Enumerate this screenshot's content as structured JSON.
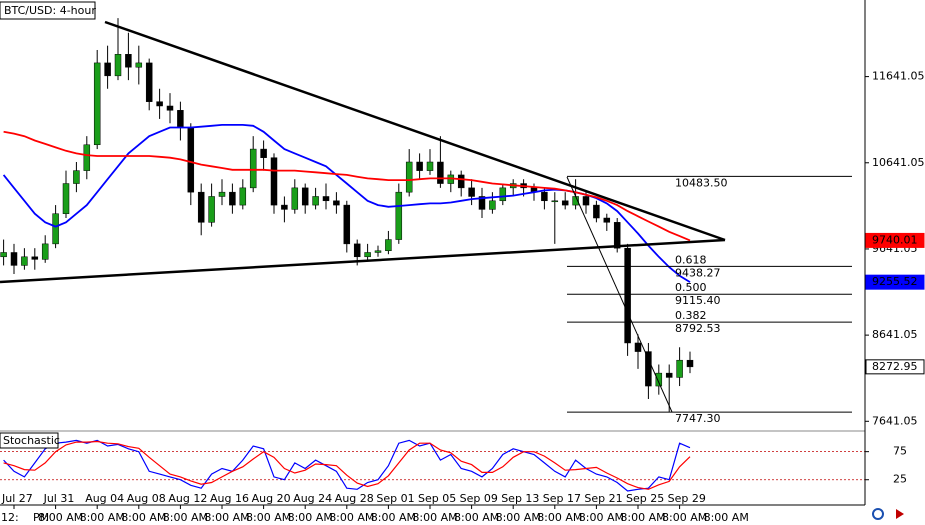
{
  "chart_data": [
    {
      "type": "candlestick",
      "title": "BTC/USD: 4-hour",
      "categories": [
        null,
        "Jul 27",
        null,
        null,
        null,
        "Jul 31",
        null,
        null,
        null,
        "Aug 04",
        null,
        null,
        null,
        "Aug 08",
        null,
        null,
        null,
        "Aug 12",
        null,
        null,
        null,
        "Aug 16",
        null,
        null,
        null,
        "Aug 20",
        null,
        null,
        null,
        "Aug 24",
        null,
        null,
        null,
        "Aug 28",
        null,
        null,
        null,
        "Sep 01",
        null,
        null,
        null,
        "Sep 05",
        null,
        null,
        null,
        "Sep 09",
        null,
        null,
        null,
        "Sep 13",
        null,
        null,
        null,
        "Sep 17",
        null,
        null,
        null,
        "Sep 21",
        null,
        null,
        null,
        "Sep 25",
        null,
        null,
        null,
        "Sep 29",
        null
      ],
      "ohlc": [
        [
          9550,
          9750,
          9450,
          9600
        ],
        [
          9600,
          9700,
          9350,
          9450
        ],
        [
          9450,
          9650,
          9400,
          9550
        ],
        [
          9550,
          9650,
          9400,
          9520
        ],
        [
          9520,
          9800,
          9480,
          9700
        ],
        [
          9700,
          10150,
          9650,
          10050
        ],
        [
          10050,
          10550,
          10000,
          10400
        ],
        [
          10400,
          10650,
          10300,
          10550
        ],
        [
          10550,
          10950,
          10450,
          10850
        ],
        [
          10850,
          11950,
          10800,
          11800
        ],
        [
          11800,
          12000,
          11500,
          11650
        ],
        [
          11650,
          12320,
          11600,
          11900
        ],
        [
          11900,
          12150,
          11600,
          11750
        ],
        [
          11750,
          12000,
          11550,
          11800
        ],
        [
          11800,
          11850,
          11250,
          11350
        ],
        [
          11350,
          11500,
          11150,
          11300
        ],
        [
          11300,
          11450,
          11100,
          11250
        ],
        [
          11250,
          11350,
          10900,
          11050
        ],
        [
          11050,
          11100,
          10150,
          10300
        ],
        [
          10300,
          10400,
          9800,
          9950
        ],
        [
          9950,
          10400,
          9900,
          10250
        ],
        [
          10250,
          10450,
          10150,
          10300
        ],
        [
          10300,
          10400,
          10050,
          10150
        ],
        [
          10150,
          10450,
          10100,
          10350
        ],
        [
          10350,
          10950,
          10300,
          10800
        ],
        [
          10800,
          10900,
          10550,
          10700
        ],
        [
          10700,
          10750,
          10050,
          10150
        ],
        [
          10150,
          10250,
          9950,
          10100
        ],
        [
          10100,
          10450,
          10050,
          10350
        ],
        [
          10350,
          10400,
          10050,
          10150
        ],
        [
          10150,
          10350,
          10100,
          10250
        ],
        [
          10250,
          10400,
          10100,
          10200
        ],
        [
          10200,
          10300,
          10050,
          10150
        ],
        [
          10150,
          10200,
          9600,
          9700
        ],
        [
          9700,
          9750,
          9450,
          9550
        ],
        [
          9550,
          9700,
          9500,
          9600
        ],
        [
          9600,
          9680,
          9550,
          9620
        ],
        [
          9620,
          9850,
          9580,
          9750
        ],
        [
          9750,
          10400,
          9700,
          10300
        ],
        [
          10300,
          10800,
          10250,
          10650
        ],
        [
          10650,
          10750,
          10450,
          10550
        ],
        [
          10550,
          10800,
          10500,
          10650
        ],
        [
          10650,
          10950,
          10350,
          10400
        ],
        [
          10400,
          10550,
          10300,
          10500
        ],
        [
          10500,
          10550,
          10250,
          10350
        ],
        [
          10350,
          10450,
          10150,
          10250
        ],
        [
          10250,
          10350,
          10000,
          10100
        ],
        [
          10100,
          10300,
          10050,
          10200
        ],
        [
          10200,
          10400,
          10150,
          10350
        ],
        [
          10350,
          10450,
          10250,
          10400
        ],
        [
          10400,
          10450,
          10250,
          10350
        ],
        [
          10350,
          10400,
          10200,
          10300
        ],
        [
          10300,
          10350,
          10100,
          10200
        ],
        [
          10200,
          10300,
          9700,
          10200
        ],
        [
          10200,
          10300,
          10100,
          10150
        ],
        [
          10150,
          10450,
          10100,
          10250
        ],
        [
          10250,
          10300,
          10050,
          10150
        ],
        [
          10150,
          10200,
          9950,
          10000
        ],
        [
          10000,
          10050,
          9850,
          9950
        ],
        [
          9950,
          10000,
          9600,
          9650
        ],
        [
          9650,
          9700,
          8400,
          8550
        ],
        [
          8550,
          8650,
          8250,
          8450
        ],
        [
          8450,
          8550,
          7900,
          8050
        ],
        [
          8050,
          8300,
          7950,
          8200
        ],
        [
          8200,
          8300,
          7750,
          8150
        ],
        [
          8150,
          8500,
          8050,
          8350
        ],
        [
          8350,
          8450,
          8200,
          8273
        ]
      ],
      "up_color": "#1a9e1a",
      "down_color": "#000000",
      "series": [
        {
          "color": "#0000ff",
          "values": [
            10500,
            10350,
            10200,
            10050,
            9950,
            9900,
            9950,
            10050,
            10150,
            10300,
            10450,
            10600,
            10750,
            10850,
            10950,
            11000,
            11050,
            11050,
            11050,
            11060,
            11070,
            11080,
            11080,
            11080,
            11070,
            11000,
            10900,
            10800,
            10750,
            10700,
            10650,
            10600,
            10500,
            10400,
            10300,
            10200,
            10150,
            10130,
            10140,
            10150,
            10160,
            10170,
            10170,
            10180,
            10200,
            10220,
            10230,
            10240,
            10250,
            10260,
            10280,
            10300,
            10320,
            10330,
            10320,
            10300,
            10270,
            10230,
            10170,
            10080,
            9950,
            9820,
            9680,
            9550,
            9430,
            9330,
            9256
          ]
        },
        {
          "color": "#ff0000",
          "values": [
            11000,
            10980,
            10950,
            10900,
            10860,
            10820,
            10780,
            10750,
            10730,
            10720,
            10720,
            10720,
            10720,
            10720,
            10720,
            10710,
            10700,
            10680,
            10650,
            10620,
            10600,
            10580,
            10560,
            10560,
            10560,
            10560,
            10550,
            10550,
            10550,
            10540,
            10530,
            10520,
            10510,
            10500,
            10480,
            10460,
            10450,
            10440,
            10440,
            10440,
            10450,
            10460,
            10460,
            10460,
            10450,
            10440,
            10420,
            10400,
            10390,
            10380,
            10370,
            10360,
            10350,
            10340,
            10320,
            10300,
            10270,
            10240,
            10200,
            10150,
            10080,
            10020,
            9960,
            9900,
            9840,
            9790,
            9740
          ]
        }
      ],
      "ylim": [
        7540,
        12530
      ],
      "yticks": [
        7641.05,
        8641.05,
        9641.05,
        10641.05,
        11641.05
      ],
      "price_markers": [
        {
          "value": 9740.01,
          "color": "#ff0000"
        },
        {
          "value": 9255.52,
          "color": "#0000ff"
        },
        {
          "value": 8272.95,
          "color": "#000000"
        }
      ],
      "fib_levels": [
        {
          "price": {
            "value": 10483.5,
            "label": "10483.50"
          }
        },
        {
          "ratio": 0.618,
          "price": 9438.27
        },
        {
          "ratio": {
            "value": 0.5,
            "label": "0.500"
          },
          "price": {
            "value": 9115.4,
            "label": "9115.40"
          }
        },
        {
          "ratio": 0.382,
          "price": 8792.53
        },
        {
          "price": {
            "value": 7747.3,
            "label": "7747.30"
          }
        }
      ],
      "time_labels": [
        "12:",
        "PM",
        "8:00 AM",
        "8:00 AM",
        "8:00 AM",
        "8:00 AM",
        "8:00 AM",
        "8:00 AM",
        "8:00 AM",
        "8:00 AM",
        "8:00 AM",
        "8:00 AM",
        "8:00 AM",
        "8:00 AM",
        "8:00 AM",
        "8:00 AM",
        "8:00 AM",
        "8:00 AM",
        "8:00 AM"
      ]
    },
    {
      "type": "line",
      "title": "Stochastic",
      "series": [
        {
          "color": "#0000ff",
          "values": [
            60,
            40,
            30,
            55,
            80,
            90,
            92,
            95,
            90,
            95,
            85,
            88,
            80,
            75,
            40,
            35,
            30,
            25,
            15,
            10,
            35,
            45,
            40,
            60,
            85,
            80,
            30,
            25,
            55,
            45,
            60,
            50,
            40,
            10,
            8,
            20,
            25,
            50,
            90,
            95,
            85,
            90,
            60,
            70,
            45,
            40,
            30,
            45,
            70,
            80,
            75,
            70,
            55,
            40,
            30,
            60,
            45,
            35,
            30,
            20,
            5,
            8,
            10,
            30,
            25,
            90,
            82
          ]
        },
        {
          "color": "#ff0000",
          "values": [
            55,
            50,
            43,
            42,
            55,
            75,
            87,
            92,
            92,
            93,
            90,
            89,
            84,
            81,
            65,
            50,
            35,
            30,
            23,
            17,
            20,
            30,
            40,
            48,
            62,
            75,
            65,
            45,
            37,
            42,
            53,
            52,
            50,
            33,
            19,
            13,
            18,
            32,
            55,
            78,
            90,
            90,
            78,
            73,
            58,
            52,
            38,
            38,
            48,
            65,
            75,
            75,
            67,
            55,
            42,
            43,
            45,
            47,
            37,
            28,
            18,
            11,
            8,
            16,
            22,
            48,
            66
          ]
        }
      ],
      "ylim": [
        -20,
        110
      ],
      "yticks": [
        25,
        75
      ]
    }
  ]
}
